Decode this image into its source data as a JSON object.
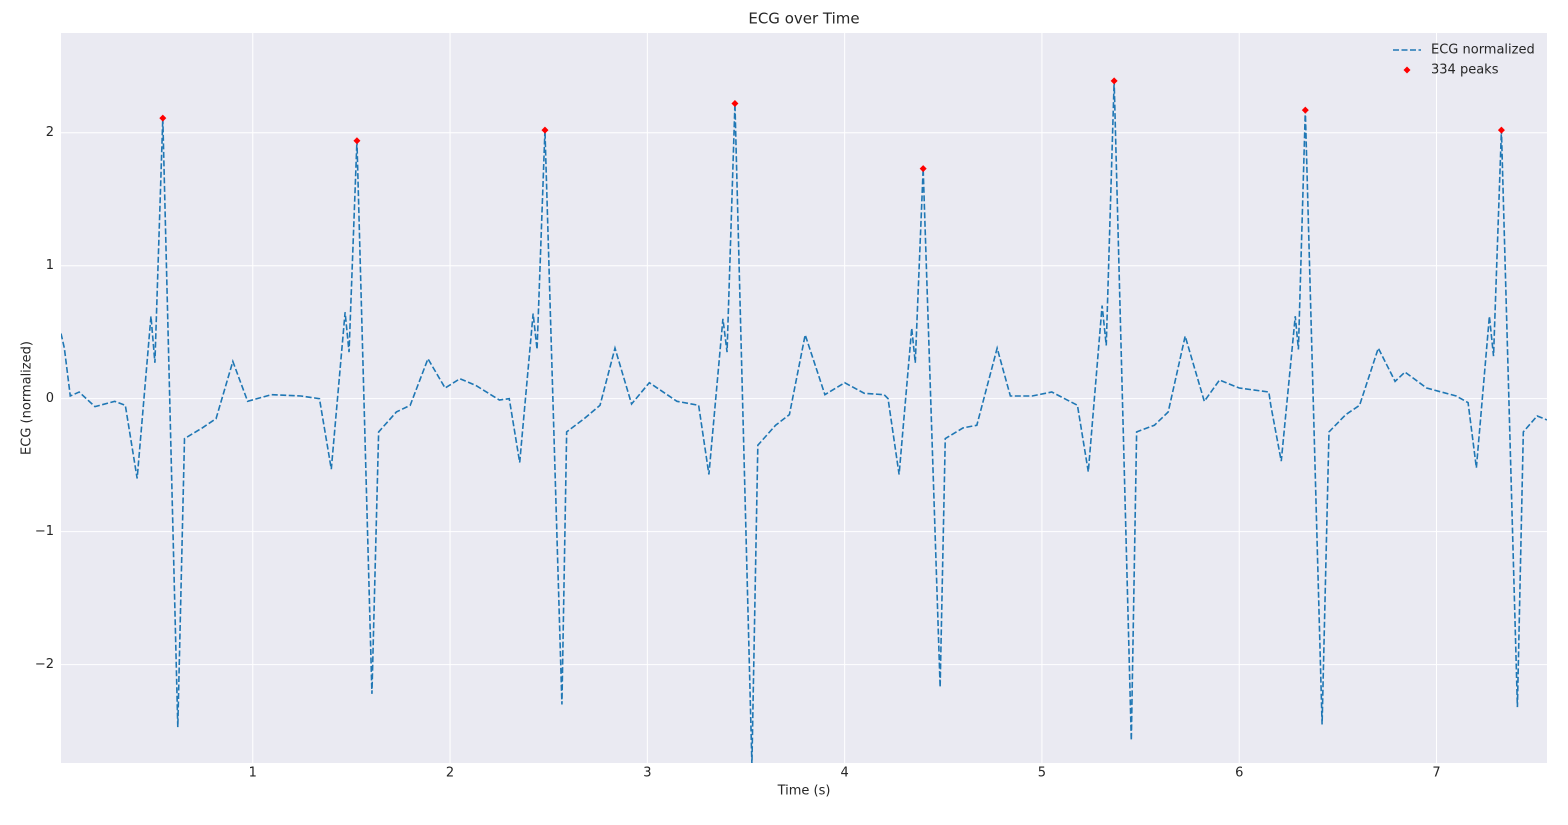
{
  "chart_data": {
    "type": "line",
    "title": "ECG over Time",
    "x_label": "Time (s)",
    "y_label": "ECG (normalized)",
    "xlim": [
      0.028,
      7.56
    ],
    "ylim": [
      -2.74,
      2.75
    ],
    "xticks": [
      1,
      2,
      3,
      4,
      5,
      6,
      7
    ],
    "yticks": [
      {
        "value": -2,
        "label": "−2"
      },
      {
        "value": -1,
        "label": "−1"
      },
      0,
      1,
      2
    ],
    "grid": true,
    "legend": "upper right",
    "series": [
      {
        "name": "ECG normalized",
        "type": "line",
        "color": "#1f77b4",
        "style": "dashed",
        "x": [
          0.028,
          0.045,
          0.075,
          0.12,
          0.2,
          0.3,
          0.354,
          0.414,
          0.484,
          0.504,
          0.544,
          0.62,
          0.654,
          0.744,
          0.814,
          0.899,
          0.974,
          1.094,
          1.244,
          1.338,
          1.398,
          1.468,
          1.488,
          1.528,
          1.604,
          1.638,
          1.728,
          1.798,
          1.888,
          1.975,
          2.05,
          2.13,
          2.25,
          2.3,
          2.353,
          2.421,
          2.441,
          2.481,
          2.567,
          2.591,
          2.68,
          2.76,
          2.836,
          2.92,
          3.01,
          3.15,
          3.26,
          3.312,
          3.383,
          3.404,
          3.444,
          3.53,
          3.56,
          3.65,
          3.72,
          3.8,
          3.9,
          4.0,
          4.1,
          4.2,
          4.22,
          4.276,
          4.34,
          4.358,
          4.398,
          4.484,
          4.51,
          4.6,
          4.67,
          4.773,
          4.84,
          4.95,
          5.05,
          5.18,
          5.235,
          5.305,
          5.326,
          5.366,
          5.453,
          5.48,
          5.57,
          5.64,
          5.726,
          5.823,
          5.9,
          6.0,
          6.15,
          6.16,
          6.213,
          6.284,
          6.3,
          6.335,
          6.42,
          6.455,
          6.54,
          6.61,
          6.705,
          6.79,
          6.84,
          6.95,
          7.1,
          7.16,
          7.202,
          7.268,
          7.289,
          7.329,
          7.41,
          7.44,
          7.51,
          7.56
        ],
        "values": [
          0.49,
          0.38,
          0.02,
          0.05,
          -0.06,
          -0.02,
          -0.05,
          -0.6,
          0.62,
          0.27,
          2.11,
          -2.47,
          -0.3,
          -0.22,
          -0.15,
          0.28,
          -0.02,
          0.03,
          0.02,
          0.0,
          -0.53,
          0.65,
          0.35,
          1.94,
          -2.22,
          -0.25,
          -0.1,
          -0.05,
          0.3,
          0.08,
          0.15,
          0.1,
          -0.01,
          0.0,
          -0.48,
          0.64,
          0.37,
          2.02,
          -2.3,
          -0.25,
          -0.15,
          -0.05,
          0.38,
          -0.04,
          0.12,
          -0.02,
          -0.05,
          -0.57,
          0.6,
          0.35,
          2.22,
          -2.75,
          -0.35,
          -0.2,
          -0.12,
          0.48,
          0.03,
          0.12,
          0.04,
          0.03,
          0.0,
          -0.57,
          0.53,
          0.27,
          1.73,
          -2.17,
          -0.3,
          -0.22,
          -0.2,
          0.38,
          0.02,
          0.02,
          0.05,
          -0.05,
          -0.55,
          0.7,
          0.4,
          2.39,
          -2.57,
          -0.25,
          -0.2,
          -0.1,
          0.47,
          -0.02,
          0.14,
          0.08,
          0.05,
          -0.05,
          -0.47,
          0.62,
          0.37,
          2.17,
          -2.45,
          -0.25,
          -0.12,
          -0.05,
          0.38,
          0.13,
          0.2,
          0.08,
          0.02,
          -0.03,
          -0.52,
          0.62,
          0.32,
          2.02,
          -2.32,
          -0.25,
          -0.13,
          -0.16
        ]
      },
      {
        "name": "334 peaks",
        "type": "scatter",
        "color": "#ff0000",
        "x": [
          0.544,
          1.528,
          2.481,
          3.444,
          4.398,
          5.366,
          6.335,
          7.329
        ],
        "values": [
          2.11,
          1.94,
          2.02,
          2.22,
          1.73,
          2.39,
          2.17,
          2.02
        ]
      }
    ]
  }
}
